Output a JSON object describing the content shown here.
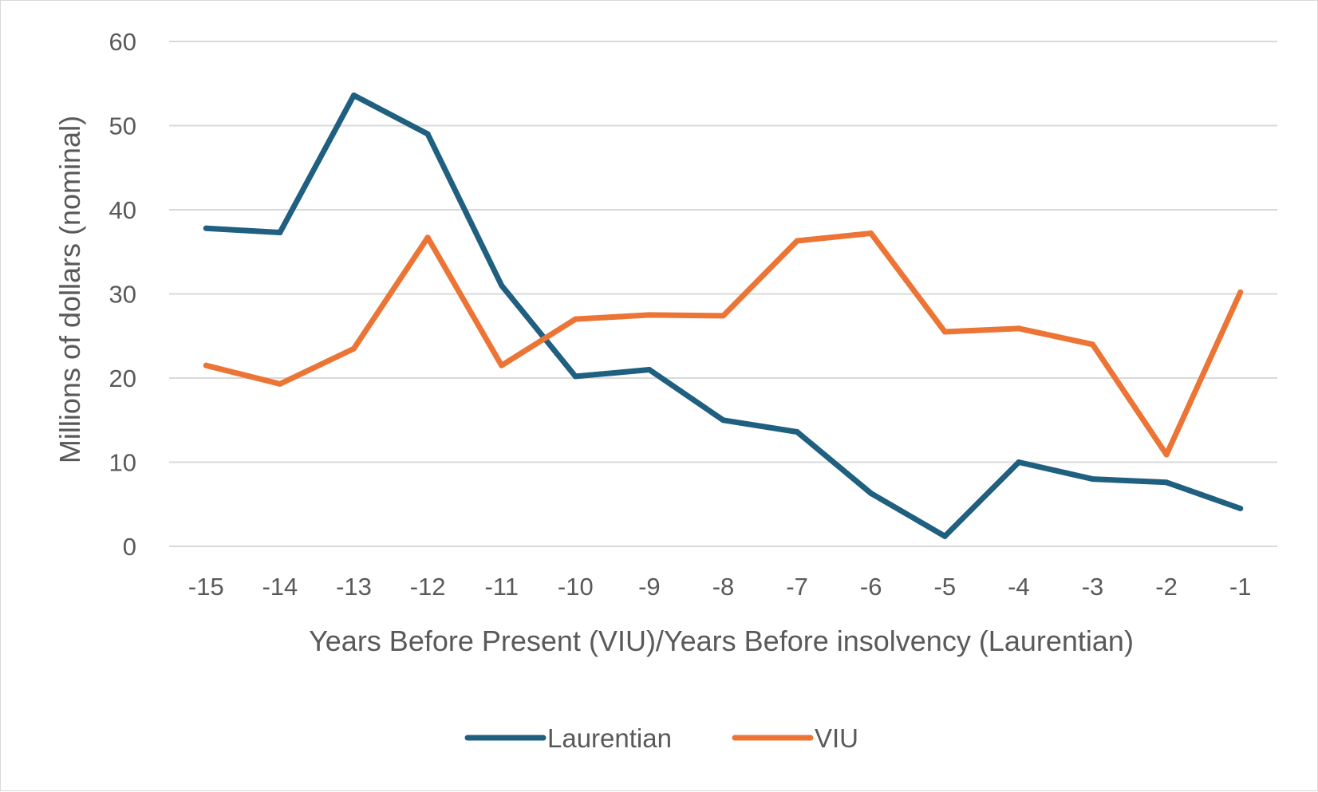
{
  "chart_data": {
    "type": "line",
    "title": "",
    "xlabel": "Years Before Present (VIU)/Years Before insolvency (Laurentian)",
    "ylabel": "Millions of dollars (nominal)",
    "categories": [
      "-15",
      "-14",
      "-13",
      "-12",
      "-11",
      "-10",
      "-9",
      "-8",
      "-7",
      "-6",
      "-5",
      "-4",
      "-3",
      "-2",
      "-1"
    ],
    "ylim": [
      0,
      60
    ],
    "yticks": [
      "0",
      "10",
      "20",
      "30",
      "40",
      "50",
      "60"
    ],
    "grid": true,
    "legend_position": "bottom",
    "series": [
      {
        "name": "Laurentian",
        "color": "#1f5f7f",
        "values": [
          37.8,
          37.3,
          53.6,
          49.0,
          31.0,
          20.2,
          21.0,
          15.0,
          13.6,
          6.3,
          1.2,
          10.0,
          8.0,
          7.6,
          4.5
        ]
      },
      {
        "name": "VIU",
        "color": "#ec7434",
        "values": [
          21.5,
          19.3,
          23.5,
          36.7,
          21.5,
          27.0,
          27.5,
          27.4,
          36.3,
          37.2,
          25.5,
          25.9,
          24.0,
          10.9,
          30.2
        ]
      }
    ]
  }
}
